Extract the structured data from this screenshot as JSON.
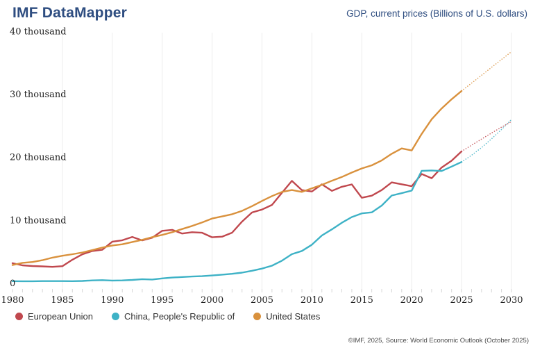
{
  "header": {
    "title": "IMF DataMapper",
    "subtitle": "GDP, current prices (Billions of U.S. dollars)"
  },
  "footer": {
    "attribution": "©IMF, 2025, Source: World Economic Outlook (October 2025)"
  },
  "colors": {
    "brand_navy": "#2e4d80",
    "eu_red": "#c0484e",
    "china_teal": "#3eb2c6",
    "us_orange": "#d9913d",
    "gridline": "#ececec",
    "tick": "#d6d6d6",
    "axis_text": "#1f1f1f"
  },
  "chart_data": {
    "type": "line",
    "title": "GDP, current prices (Billions of U.S. dollars)",
    "xlabel": "",
    "ylabel": "Billions of U.S. dollars",
    "xlim": [
      1980,
      2030
    ],
    "ylim": [
      0,
      40000
    ],
    "grid": "vertical-only",
    "legend_position": "bottom-left",
    "projection_start": 2025,
    "xticks": [
      1980,
      1985,
      1990,
      1995,
      2000,
      2005,
      2010,
      2015,
      2020,
      2025,
      2030
    ],
    "yticks": [
      {
        "value": 0,
        "label": "0"
      },
      {
        "value": 10000,
        "label": "10 thousand"
      },
      {
        "value": 20000,
        "label": "20 thousand"
      },
      {
        "value": 30000,
        "label": "30 thousand"
      },
      {
        "value": 40000,
        "label": "40 thousand"
      }
    ],
    "x": [
      1980,
      1981,
      1982,
      1983,
      1984,
      1985,
      1986,
      1987,
      1988,
      1989,
      1990,
      1991,
      1992,
      1993,
      1994,
      1995,
      1996,
      1997,
      1998,
      1999,
      2000,
      2001,
      2002,
      2003,
      2004,
      2005,
      2006,
      2007,
      2008,
      2009,
      2010,
      2011,
      2012,
      2013,
      2014,
      2015,
      2016,
      2017,
      2018,
      2019,
      2020,
      2021,
      2022,
      2023,
      2024,
      2025,
      2026,
      2027,
      2028,
      2029,
      2030
    ],
    "series": [
      {
        "name": "European Union",
        "color": "#c0484e",
        "values": [
          3155,
          2815,
          2706,
          2652,
          2570,
          2680,
          3710,
          4572,
          5083,
          5289,
          6576,
          6796,
          7323,
          6771,
          7206,
          8298,
          8451,
          7867,
          8080,
          7992,
          7265,
          7374,
          8003,
          9754,
          11203,
          11669,
          12405,
          14336,
          16224,
          14755,
          14540,
          15680,
          14635,
          15295,
          15665,
          13550,
          13883,
          14770,
          15981,
          15692,
          15380,
          17318,
          16641,
          18350,
          19423,
          20917,
          21900,
          22870,
          23830,
          24760,
          25650
        ]
      },
      {
        "name": "China, People's Republic of",
        "color": "#3eb2c6",
        "values": [
          303,
          289,
          285,
          305,
          314,
          313,
          301,
          329,
          414,
          461,
          395,
          415,
          495,
          623,
          566,
          736,
          867,
          965,
          1033,
          1097,
          1205,
          1333,
          1465,
          1656,
          1949,
          2290,
          2754,
          3555,
          4594,
          5101,
          6087,
          7552,
          8532,
          9570,
          10476,
          11062,
          11233,
          12310,
          13895,
          14280,
          14688,
          17820,
          17882,
          17795,
          18500,
          19231,
          20302,
          21510,
          22897,
          24395,
          25977
        ]
      },
      {
        "name": "United States",
        "color": "#d9913d",
        "values": [
          2857,
          3207,
          3344,
          3634,
          4038,
          4339,
          4580,
          4855,
          5236,
          5642,
          5963,
          6158,
          6520,
          6859,
          7287,
          7640,
          8073,
          8578,
          9063,
          9631,
          10251,
          10582,
          10936,
          11458,
          12214,
          13039,
          13816,
          14474,
          14770,
          14478,
          15049,
          15600,
          16254,
          16843,
          17551,
          18206,
          18695,
          19477,
          20533,
          21381,
          21061,
          23681,
          26007,
          27721,
          29185,
          30508,
          31750,
          33000,
          34250,
          35500,
          36750
        ]
      }
    ]
  }
}
